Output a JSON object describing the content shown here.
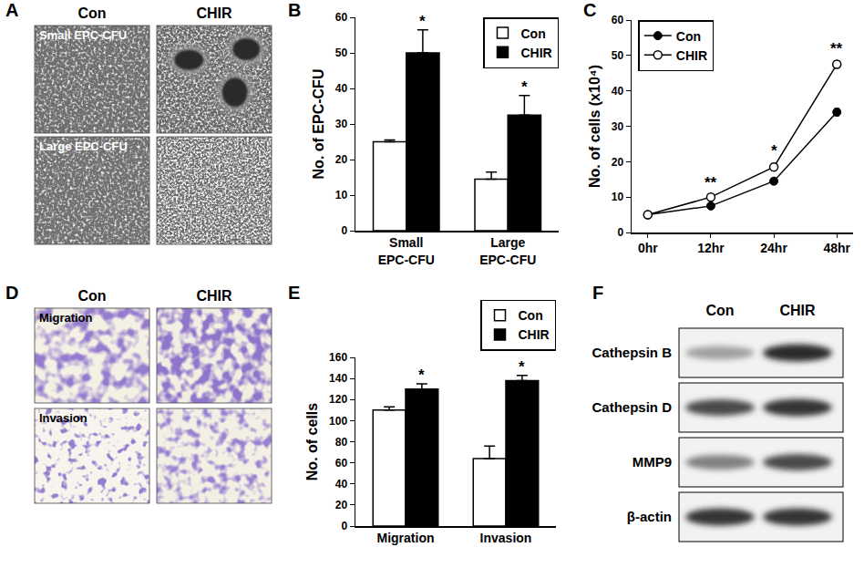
{
  "panel_labels": [
    "A",
    "B",
    "C",
    "D",
    "E",
    "F"
  ],
  "image_panels": [
    {
      "columns": [
        "Con",
        "CHIR"
      ],
      "rows": [
        "Small EPC-CFU",
        "Large EPC-CFU"
      ]
    },
    {
      "columns": [
        "Con",
        "CHIR"
      ],
      "rows": [
        "Migration",
        "Invasion"
      ]
    }
  ],
  "blot": {
    "columns": [
      "Con",
      "CHIR"
    ],
    "bands": [
      {
        "label": "Cathepsin B",
        "intensity": [
          0.35,
          0.9
        ]
      },
      {
        "label": "Cathepsin D",
        "intensity": [
          0.75,
          0.85
        ]
      },
      {
        "label": "MMP9",
        "intensity": [
          0.5,
          0.75
        ]
      },
      {
        "label": "β-actin",
        "intensity": [
          0.85,
          0.85
        ]
      }
    ]
  },
  "chart_data": [
    {
      "type": "bar",
      "categories": [
        "Small EPC-CFU",
        "Large EPC-CFU"
      ],
      "series": [
        {
          "name": "Con",
          "color": "#ffffff",
          "values": [
            25,
            14.5
          ],
          "errors": [
            0.5,
            2
          ]
        },
        {
          "name": "CHIR",
          "color": "#000000",
          "values": [
            50,
            32.5
          ],
          "errors": [
            6.5,
            5.5
          ]
        }
      ],
      "y_title": "No. of EPC-CFU",
      "ylim": [
        0,
        60
      ],
      "yticks": [
        0,
        10,
        20,
        30,
        40,
        50,
        60
      ],
      "legend": "top-right",
      "grid": false,
      "annotations": [
        {
          "text": "*",
          "x": "Small EPC-CFU",
          "series": "CHIR"
        },
        {
          "text": "*",
          "x": "Large EPC-CFU",
          "series": "CHIR"
        }
      ]
    },
    {
      "type": "line",
      "categories": [
        "0hr",
        "12hr",
        "24hr",
        "48hr"
      ],
      "series": [
        {
          "name": "Con",
          "color": "#000000",
          "marker": "filled-circle",
          "values": [
            5,
            7.5,
            14.5,
            34
          ],
          "errors": [
            0.3,
            0.5,
            0.8,
            1
          ]
        },
        {
          "name": "CHIR",
          "color": "#000000",
          "marker": "open-circle",
          "values": [
            5,
            10,
            18.5,
            47.5
          ],
          "errors": [
            0.3,
            0.5,
            1,
            1
          ]
        }
      ],
      "y_title": "No. of cells (x10⁴)",
      "ylim": [
        0,
        60
      ],
      "yticks": [
        0,
        10,
        20,
        30,
        40,
        50,
        60
      ],
      "legend": "top-left",
      "grid": false,
      "annotations": [
        {
          "text": "**",
          "x": "12hr",
          "series": "CHIR"
        },
        {
          "text": "*",
          "x": "24hr",
          "series": "CHIR"
        },
        {
          "text": "**",
          "x": "48hr",
          "series": "CHIR"
        }
      ]
    },
    {
      "type": "bar",
      "categories": [
        "Migration",
        "Invasion"
      ],
      "series": [
        {
          "name": "Con",
          "color": "#ffffff",
          "values": [
            110,
            64
          ],
          "errors": [
            3,
            12
          ]
        },
        {
          "name": "CHIR",
          "color": "#000000",
          "values": [
            130,
            138
          ],
          "errors": [
            5,
            5
          ]
        }
      ],
      "y_title": "No. of cells",
      "ylim": [
        0,
        160
      ],
      "yticks": [
        0,
        20,
        40,
        60,
        80,
        100,
        120,
        140,
        160
      ],
      "legend": "above-right",
      "grid": false,
      "annotations": [
        {
          "text": "*",
          "x": "Migration",
          "series": "CHIR"
        },
        {
          "text": "*",
          "x": "Invasion",
          "series": "CHIR"
        }
      ]
    }
  ]
}
